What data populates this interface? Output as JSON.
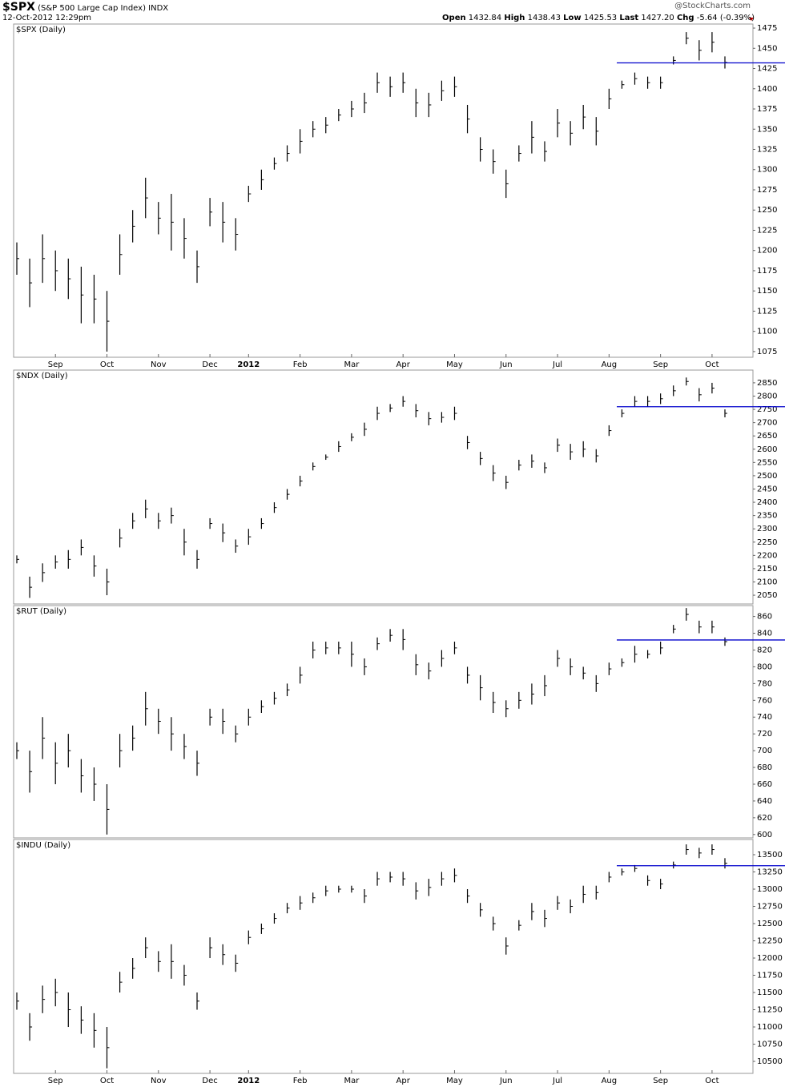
{
  "header": {
    "symbol": "$SPX",
    "name": "(S&P 500 Large Cap Index)",
    "exchange": "INDX",
    "datetime": "12-Oct-2012 12:29pm",
    "credit": "@StockCharts.com",
    "quote": [
      {
        "label": "Open",
        "value": "1432.84"
      },
      {
        "label": "High",
        "value": "1438.43"
      },
      {
        "label": "Low",
        "value": "1425.53"
      },
      {
        "label": "Last",
        "value": "1427.20"
      },
      {
        "label": "Chg",
        "value": "-5.64 (-0.39%)"
      }
    ]
  },
  "chart_data": [
    {
      "type": "hilo",
      "title": "$SPX (Daily)",
      "color": "#000000",
      "line_color": "#0000cc",
      "hline": 1432,
      "categories": [
        null,
        null,
        null,
        "Sep",
        null,
        null,
        null,
        "Oct",
        null,
        null,
        null,
        "Nov",
        null,
        null,
        null,
        "Dec",
        null,
        null,
        "2012",
        null,
        null,
        null,
        "Feb",
        null,
        null,
        null,
        "Mar",
        null,
        null,
        null,
        "Apr",
        null,
        null,
        null,
        "May",
        null,
        null,
        null,
        "Jun",
        null,
        null,
        null,
        "Jul",
        null,
        null,
        null,
        "Aug",
        null,
        null,
        null,
        "Sep",
        null,
        null,
        null,
        "Oct",
        null
      ],
      "high": [
        1210,
        1190,
        1220,
        1200,
        1190,
        1180,
        1170,
        1150,
        1220,
        1250,
        1290,
        1260,
        1270,
        1240,
        1200,
        1265,
        1260,
        1240,
        1280,
        1300,
        1315,
        1330,
        1350,
        1360,
        1365,
        1375,
        1385,
        1395,
        1420,
        1415,
        1420,
        1400,
        1395,
        1410,
        1415,
        1380,
        1340,
        1325,
        1300,
        1330,
        1360,
        1335,
        1375,
        1360,
        1380,
        1365,
        1400,
        1410,
        1420,
        1415,
        1415,
        1440,
        1470,
        1460,
        1470,
        1440
      ],
      "low": [
        1170,
        1130,
        1160,
        1150,
        1140,
        1110,
        1110,
        1075,
        1170,
        1210,
        1240,
        1220,
        1200,
        1190,
        1160,
        1230,
        1210,
        1200,
        1260,
        1275,
        1300,
        1310,
        1320,
        1340,
        1345,
        1360,
        1365,
        1370,
        1395,
        1390,
        1395,
        1365,
        1365,
        1385,
        1390,
        1345,
        1310,
        1295,
        1265,
        1310,
        1320,
        1310,
        1340,
        1330,
        1350,
        1330,
        1375,
        1400,
        1405,
        1400,
        1400,
        1430,
        1455,
        1435,
        1445,
        1425
      ],
      "ylim": [
        1068,
        1480
      ],
      "yticks": [
        1075,
        1100,
        1125,
        1150,
        1175,
        1200,
        1225,
        1250,
        1275,
        1300,
        1325,
        1350,
        1375,
        1400,
        1425,
        1450,
        1475
      ]
    },
    {
      "type": "hilo",
      "title": "$NDX (Daily)",
      "color": "#000000",
      "line_color": "#0000cc",
      "hline": 2760,
      "high": [
        2200,
        2120,
        2170,
        2200,
        2220,
        2260,
        2200,
        2150,
        2300,
        2360,
        2410,
        2360,
        2380,
        2300,
        2220,
        2340,
        2320,
        2260,
        2300,
        2340,
        2400,
        2450,
        2500,
        2550,
        2580,
        2630,
        2660,
        2700,
        2760,
        2770,
        2800,
        2770,
        2740,
        2740,
        2760,
        2650,
        2590,
        2540,
        2500,
        2560,
        2580,
        2550,
        2640,
        2620,
        2630,
        2600,
        2690,
        2750,
        2800,
        2800,
        2810,
        2840,
        2870,
        2830,
        2850,
        2750
      ],
      "low": [
        2170,
        2040,
        2100,
        2150,
        2150,
        2200,
        2120,
        2050,
        2230,
        2300,
        2340,
        2300,
        2320,
        2200,
        2150,
        2300,
        2250,
        2210,
        2240,
        2300,
        2360,
        2410,
        2460,
        2520,
        2560,
        2590,
        2630,
        2650,
        2710,
        2740,
        2760,
        2720,
        2690,
        2700,
        2710,
        2600,
        2540,
        2480,
        2450,
        2520,
        2530,
        2510,
        2590,
        2560,
        2570,
        2550,
        2650,
        2720,
        2760,
        2760,
        2770,
        2800,
        2840,
        2780,
        2810,
        2720
      ],
      "ylim": [
        2017,
        2898
      ],
      "yticks": [
        2050,
        2100,
        2150,
        2200,
        2250,
        2300,
        2350,
        2400,
        2450,
        2500,
        2550,
        2600,
        2650,
        2700,
        2750,
        2800,
        2850
      ]
    },
    {
      "type": "hilo",
      "title": "$RUT (Daily)",
      "color": "#000000",
      "line_color": "#0000cc",
      "hline": 832,
      "high": [
        710,
        700,
        740,
        710,
        720,
        690,
        680,
        660,
        720,
        730,
        770,
        750,
        740,
        720,
        700,
        750,
        750,
        730,
        750,
        760,
        770,
        780,
        800,
        830,
        830,
        830,
        830,
        810,
        835,
        845,
        845,
        815,
        805,
        820,
        830,
        800,
        790,
        770,
        760,
        770,
        780,
        790,
        820,
        810,
        800,
        790,
        805,
        810,
        825,
        820,
        830,
        850,
        870,
        855,
        855,
        835
      ],
      "low": [
        690,
        650,
        690,
        660,
        680,
        650,
        640,
        600,
        680,
        700,
        730,
        720,
        700,
        690,
        670,
        730,
        720,
        710,
        730,
        745,
        755,
        765,
        780,
        810,
        815,
        815,
        800,
        790,
        820,
        830,
        820,
        790,
        785,
        800,
        815,
        780,
        760,
        745,
        740,
        750,
        755,
        765,
        800,
        790,
        785,
        770,
        790,
        800,
        805,
        810,
        815,
        840,
        855,
        840,
        840,
        825
      ],
      "ylim": [
        596,
        873
      ],
      "yticks": [
        600,
        620,
        640,
        660,
        680,
        700,
        720,
        740,
        760,
        780,
        800,
        820,
        840,
        860
      ]
    },
    {
      "type": "hilo",
      "title": "$INDU (Daily)",
      "color": "#000000",
      "line_color": "#0000cc",
      "hline": 13340,
      "categories": [
        null,
        null,
        null,
        "Sep",
        null,
        null,
        null,
        "Oct",
        null,
        null,
        null,
        "Nov",
        null,
        null,
        null,
        "Dec",
        null,
        null,
        "2012",
        null,
        null,
        null,
        "Feb",
        null,
        null,
        null,
        "Mar",
        null,
        null,
        null,
        "Apr",
        null,
        null,
        null,
        "May",
        null,
        null,
        null,
        "Jun",
        null,
        null,
        null,
        "Jul",
        null,
        null,
        null,
        "Aug",
        null,
        null,
        null,
        "Sep",
        null,
        null,
        null,
        "Oct",
        null
      ],
      "high": [
        11500,
        11200,
        11600,
        11700,
        11500,
        11300,
        11200,
        11000,
        11800,
        12000,
        12300,
        12100,
        12200,
        11900,
        11500,
        12300,
        12200,
        12050,
        12400,
        12500,
        12650,
        12800,
        12900,
        12950,
        13050,
        13050,
        13050,
        13000,
        13250,
        13250,
        13250,
        13100,
        13150,
        13250,
        13300,
        13000,
        12800,
        12600,
        12300,
        12550,
        12800,
        12700,
        12900,
        12850,
        13050,
        13050,
        13250,
        13300,
        13350,
        13200,
        13150,
        13400,
        13650,
        13600,
        13650,
        13450
      ],
      "low": [
        11250,
        10800,
        11200,
        11300,
        11000,
        10900,
        10700,
        10400,
        11500,
        11700,
        12000,
        11800,
        11700,
        11600,
        11250,
        12000,
        11900,
        11800,
        12200,
        12350,
        12500,
        12650,
        12700,
        12800,
        12900,
        12950,
        12950,
        12800,
        13050,
        13100,
        13050,
        12850,
        12900,
        13050,
        13100,
        12800,
        12600,
        12400,
        12050,
        12400,
        12550,
        12450,
        12700,
        12650,
        12800,
        12850,
        13100,
        13200,
        13250,
        13050,
        13000,
        13300,
        13500,
        13450,
        13500,
        13300
      ],
      "ylim": [
        10326,
        13721
      ],
      "yticks": [
        10500,
        10750,
        11000,
        11250,
        11500,
        11750,
        12000,
        12250,
        12500,
        12750,
        13000,
        13250,
        13500
      ]
    }
  ]
}
